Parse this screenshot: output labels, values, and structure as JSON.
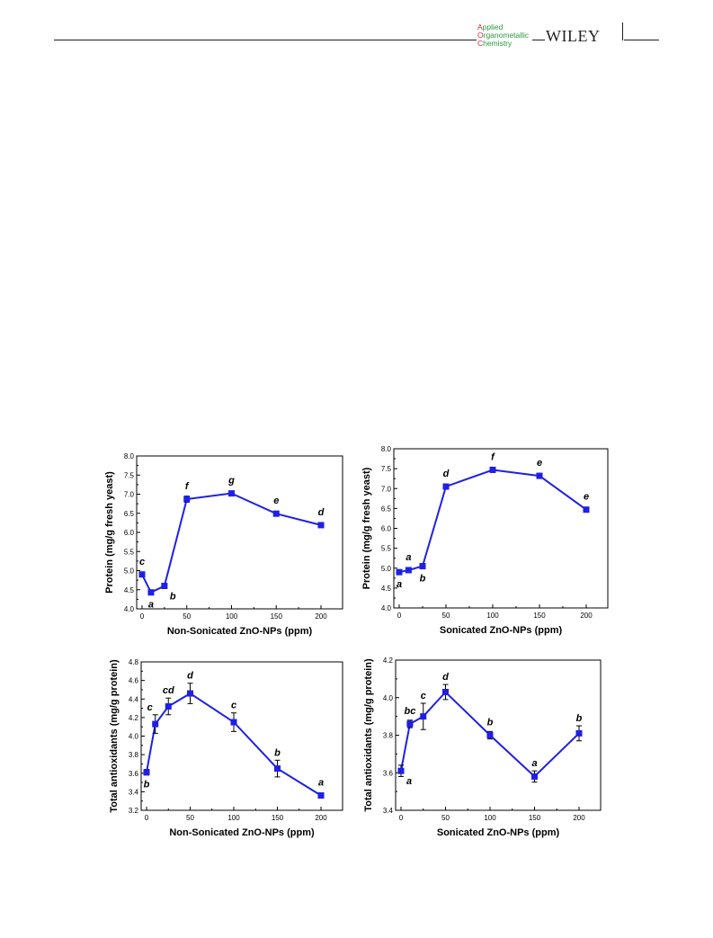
{
  "header": {
    "journal": {
      "line1": {
        "initial": "A",
        "rest": "pplied"
      },
      "line2": {
        "initial": "O",
        "rest": "rganometallic"
      },
      "line3": {
        "initial": "C",
        "rest": "hemistry"
      }
    },
    "publisher": "WILEY"
  },
  "colors": {
    "series": "#1f1fe6",
    "axis": "#000000",
    "journal_green": "#2a9a3e",
    "journal_red": "#d8282f"
  },
  "chart_data": [
    {
      "type": "line",
      "xlabel": "Non-Sonicated ZnO-NPs (ppm)",
      "ylabel": "Protein (mg/g fresh yeast)",
      "xlim": [
        0,
        200
      ],
      "ylim": [
        4.0,
        8.0
      ],
      "xticks": [
        0,
        50,
        100,
        150,
        200
      ],
      "yticks": [
        4.0,
        4.5,
        5.0,
        5.5,
        6.0,
        6.5,
        7.0,
        7.5,
        8.0
      ],
      "ytick_labels": [
        "4.0",
        "4.5",
        "5.0",
        "5.5",
        "6.0",
        "6.5",
        "7.0",
        "7.5",
        "8.0"
      ],
      "x": [
        0,
        10,
        25,
        50,
        100,
        150,
        200
      ],
      "y": [
        4.9,
        4.43,
        4.6,
        6.87,
        7.02,
        6.49,
        6.19
      ],
      "err": [
        0.03,
        0.03,
        0.04,
        0.08,
        0.04,
        0.03,
        0.03
      ],
      "letters": [
        "c",
        "a",
        "b",
        "f",
        "g",
        "e",
        "d"
      ],
      "letter_pos": [
        "above",
        "below",
        "below-right",
        "above",
        "above",
        "above",
        "above"
      ]
    },
    {
      "type": "line",
      "xlabel": "Sonicated ZnO-NPs (ppm)",
      "ylabel": "Protein (mg/g fresh yeast)",
      "xlim": [
        0,
        200
      ],
      "ylim": [
        4.0,
        8.0
      ],
      "xticks": [
        0,
        50,
        100,
        150,
        200
      ],
      "yticks": [
        4.0,
        4.5,
        5.0,
        5.5,
        6.0,
        6.5,
        7.0,
        7.5,
        8.0
      ],
      "ytick_labels": [
        "4.0",
        "4.5",
        "5.0",
        "5.5",
        "6.0",
        "6.5",
        "7.0",
        "7.5",
        "8.0"
      ],
      "x": [
        0,
        10,
        25,
        50,
        100,
        150,
        200
      ],
      "y": [
        4.9,
        4.95,
        5.05,
        7.05,
        7.47,
        7.32,
        6.47
      ],
      "err": [
        0.03,
        0.03,
        0.03,
        0.03,
        0.03,
        0.03,
        0.03
      ],
      "letters": [
        "a",
        "a",
        "b",
        "d",
        "f",
        "e",
        "e"
      ],
      "letter_pos": [
        "below",
        "above",
        "below",
        "above",
        "above",
        "above",
        "above"
      ]
    },
    {
      "type": "line",
      "xlabel": "Non-Sonicated ZnO-NPs (ppm)",
      "ylabel": "Total antioxidants (mg/g protein)",
      "xlim": [
        0,
        200
      ],
      "ylim": [
        3.2,
        4.8
      ],
      "xticks": [
        0,
        50,
        100,
        150,
        200
      ],
      "yticks": [
        3.2,
        3.4,
        3.6,
        3.8,
        4.0,
        4.2,
        4.4,
        4.6,
        4.8
      ],
      "ytick_labels": [
        "3.2",
        "3.4",
        "3.6",
        "3.8",
        "4.0",
        "4.2",
        "4.4",
        "4.6",
        "4.8"
      ],
      "x": [
        0,
        10,
        25,
        50,
        100,
        150,
        200
      ],
      "y": [
        3.61,
        4.13,
        4.32,
        4.46,
        4.15,
        3.65,
        3.36
      ],
      "err": [
        0.03,
        0.1,
        0.09,
        0.11,
        0.1,
        0.09,
        0.02
      ],
      "letters": [
        "b",
        "c",
        "cd",
        "d",
        "c",
        "b",
        "a"
      ],
      "letter_pos": [
        "below",
        "above-left",
        "above",
        "above",
        "above",
        "above",
        "above"
      ]
    },
    {
      "type": "line",
      "xlabel": "Sonicated ZnO-NPs (ppm)",
      "ylabel": "Total antioxidants (mg/g protein)",
      "xlim": [
        0,
        200
      ],
      "ylim": [
        3.4,
        4.2
      ],
      "xticks": [
        0,
        50,
        100,
        150,
        200
      ],
      "yticks": [
        3.4,
        3.6,
        3.8,
        4.0,
        4.2
      ],
      "ytick_labels": [
        "3.4",
        "3.6",
        "3.8",
        "4.0",
        "4.2"
      ],
      "x": [
        0,
        10,
        25,
        50,
        100,
        150,
        200
      ],
      "y": [
        3.61,
        3.86,
        3.9,
        4.03,
        3.8,
        3.58,
        3.81
      ],
      "err": [
        0.03,
        0.02,
        0.07,
        0.04,
        0.02,
        0.03,
        0.04
      ],
      "letters": [
        "a",
        "bc",
        "c",
        "d",
        "b",
        "a",
        "b"
      ],
      "letter_pos": [
        "below-right",
        "above",
        "above",
        "above",
        "above",
        "above",
        "above"
      ]
    }
  ]
}
